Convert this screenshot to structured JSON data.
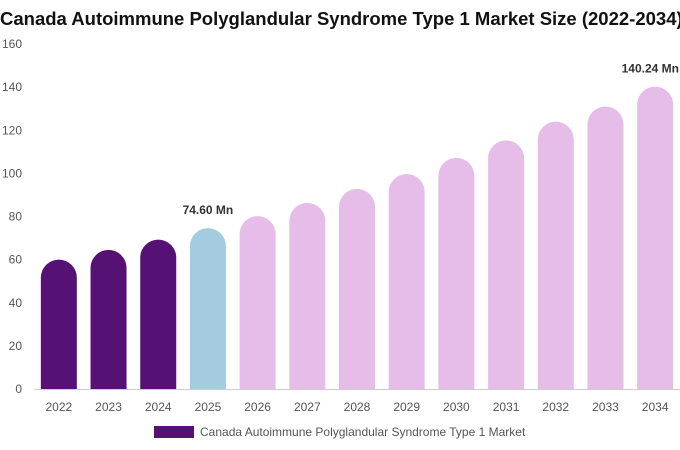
{
  "chart_data": {
    "type": "bar",
    "title": "Canada Autoimmune Polyglandular Syndrome Type 1 Market Size (2022-2034)",
    "categories": [
      "2022",
      "2023",
      "2024",
      "2025",
      "2026",
      "2027",
      "2028",
      "2029",
      "2030",
      "2031",
      "2032",
      "2033",
      "2034"
    ],
    "series": [
      {
        "name": "Canada Autoimmune Polyglandular Syndrome Type 1 Market",
        "values": [
          60.0,
          64.5,
          69.3,
          74.6,
          80.2,
          86.3,
          92.8,
          99.7,
          107.2,
          115.3,
          124.0,
          131.0,
          140.24
        ]
      }
    ],
    "data_labels": [
      {
        "category": "2025",
        "text": "74.60 Mn"
      },
      {
        "category": "2034",
        "text": "140.24 Mn"
      }
    ],
    "ylim": [
      0,
      160
    ],
    "yticks": [
      0,
      20,
      40,
      60,
      80,
      100,
      120,
      140,
      160
    ],
    "xlabel": "",
    "ylabel": "",
    "grid": false,
    "legend_position": "bottom",
    "colors": {
      "historical": "#561174",
      "base_year": "#a4cbe0",
      "forecast": "#e6bde8",
      "legend": "#561174"
    },
    "color_groups": {
      "historical": [
        "2022",
        "2023",
        "2024"
      ],
      "base_year": [
        "2025"
      ],
      "forecast": [
        "2026",
        "2027",
        "2028",
        "2029",
        "2030",
        "2031",
        "2032",
        "2033",
        "2034"
      ]
    }
  }
}
